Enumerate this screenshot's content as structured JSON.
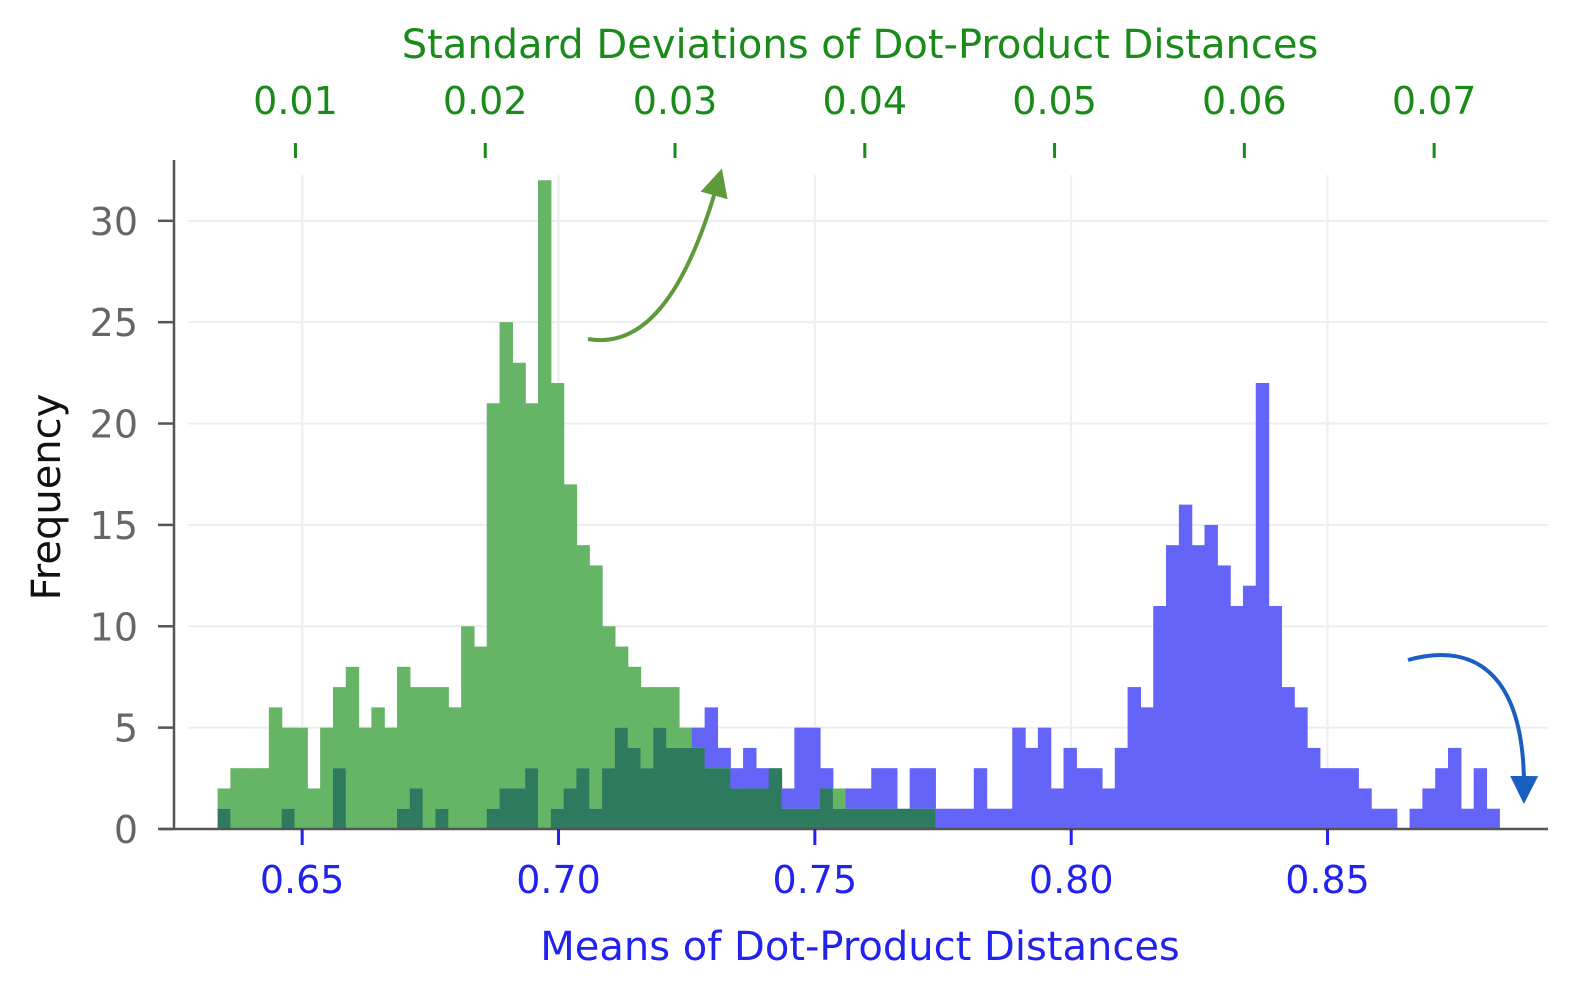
{
  "chart_data": {
    "type": "histogram",
    "title": "",
    "top_axis": {
      "label": "Standard Deviations of Dot-Product Distances",
      "range": [
        0.0036,
        0.076
      ],
      "ticks": [
        0.01,
        0.02,
        0.03,
        0.04,
        0.05,
        0.06,
        0.07
      ],
      "tick_labels": [
        "0.01",
        "0.02",
        "0.03",
        "0.04",
        "0.05",
        "0.06",
        "0.07"
      ],
      "color": "#1a8a1a"
    },
    "bottom_axis": {
      "label": "Means of Dot-Product Distances",
      "range": [
        0.625,
        0.893
      ],
      "ticks": [
        0.65,
        0.7,
        0.75,
        0.8,
        0.85
      ],
      "tick_labels": [
        "0.65",
        "0.70",
        "0.75",
        "0.80",
        "0.85"
      ],
      "color": "#2222ee"
    },
    "y_axis": {
      "label": "Frequency",
      "range": [
        0,
        33
      ],
      "ticks": [
        0,
        5,
        10,
        15,
        20,
        25,
        30
      ],
      "tick_labels": [
        "0",
        "5",
        "10",
        "15",
        "20",
        "25",
        "30"
      ]
    },
    "bin_start": 0.6335,
    "bin_width": 0.0025,
    "series": [
      {
        "name": "Standard Deviations",
        "color": "#66b566",
        "counts": [
          2,
          3,
          3,
          3,
          6,
          5,
          5,
          2,
          5,
          7,
          8,
          5,
          6,
          5,
          8,
          7,
          7,
          7,
          6,
          10,
          9,
          21,
          25,
          23,
          21,
          32,
          22,
          17,
          14,
          13,
          10,
          9,
          8,
          7,
          7,
          7,
          5,
          4,
          3,
          3,
          2,
          2,
          2,
          3,
          1,
          1,
          1,
          2,
          2,
          1,
          1,
          1,
          1,
          1,
          1,
          1,
          0,
          0,
          0,
          0,
          0,
          0,
          0,
          0,
          0,
          0,
          0,
          0,
          0,
          0,
          0,
          0,
          0,
          0,
          0,
          0,
          0,
          0,
          0,
          0,
          0,
          0,
          0,
          0,
          0,
          0,
          0,
          0,
          0,
          0,
          0,
          0,
          0,
          0,
          0,
          0,
          0,
          0,
          0,
          0
        ]
      },
      {
        "name": "Means",
        "color": "#6464f8",
        "counts": [
          1,
          0,
          0,
          0,
          0,
          1,
          0,
          0,
          0,
          3,
          0,
          0,
          0,
          0,
          1,
          2,
          0,
          1,
          0,
          0,
          0,
          1,
          2,
          2,
          3,
          0,
          1,
          2,
          3,
          1,
          3,
          5,
          4,
          3,
          5,
          4,
          4,
          5,
          6,
          4,
          3,
          4,
          3,
          3,
          2,
          5,
          5,
          3,
          1,
          2,
          2,
          3,
          3,
          1,
          3,
          3,
          1,
          1,
          1,
          3,
          1,
          1,
          5,
          4,
          5,
          2,
          4,
          3,
          3,
          2,
          4,
          7,
          6,
          11,
          14,
          16,
          14,
          15,
          13,
          11,
          12,
          22,
          11,
          7,
          6,
          4,
          3,
          3,
          3,
          2,
          1,
          1,
          0,
          1,
          2,
          3,
          4,
          1,
          3,
          1
        ]
      }
    ],
    "overlap_color": "#2e7a5e",
    "annotations": [
      {
        "type": "arrow",
        "direction": "up-right",
        "points_to": "top axis",
        "color": "#5e9a3a"
      },
      {
        "type": "arrow",
        "direction": "down",
        "points_to": "bottom axis",
        "color": "#1a5ec0"
      }
    ]
  }
}
